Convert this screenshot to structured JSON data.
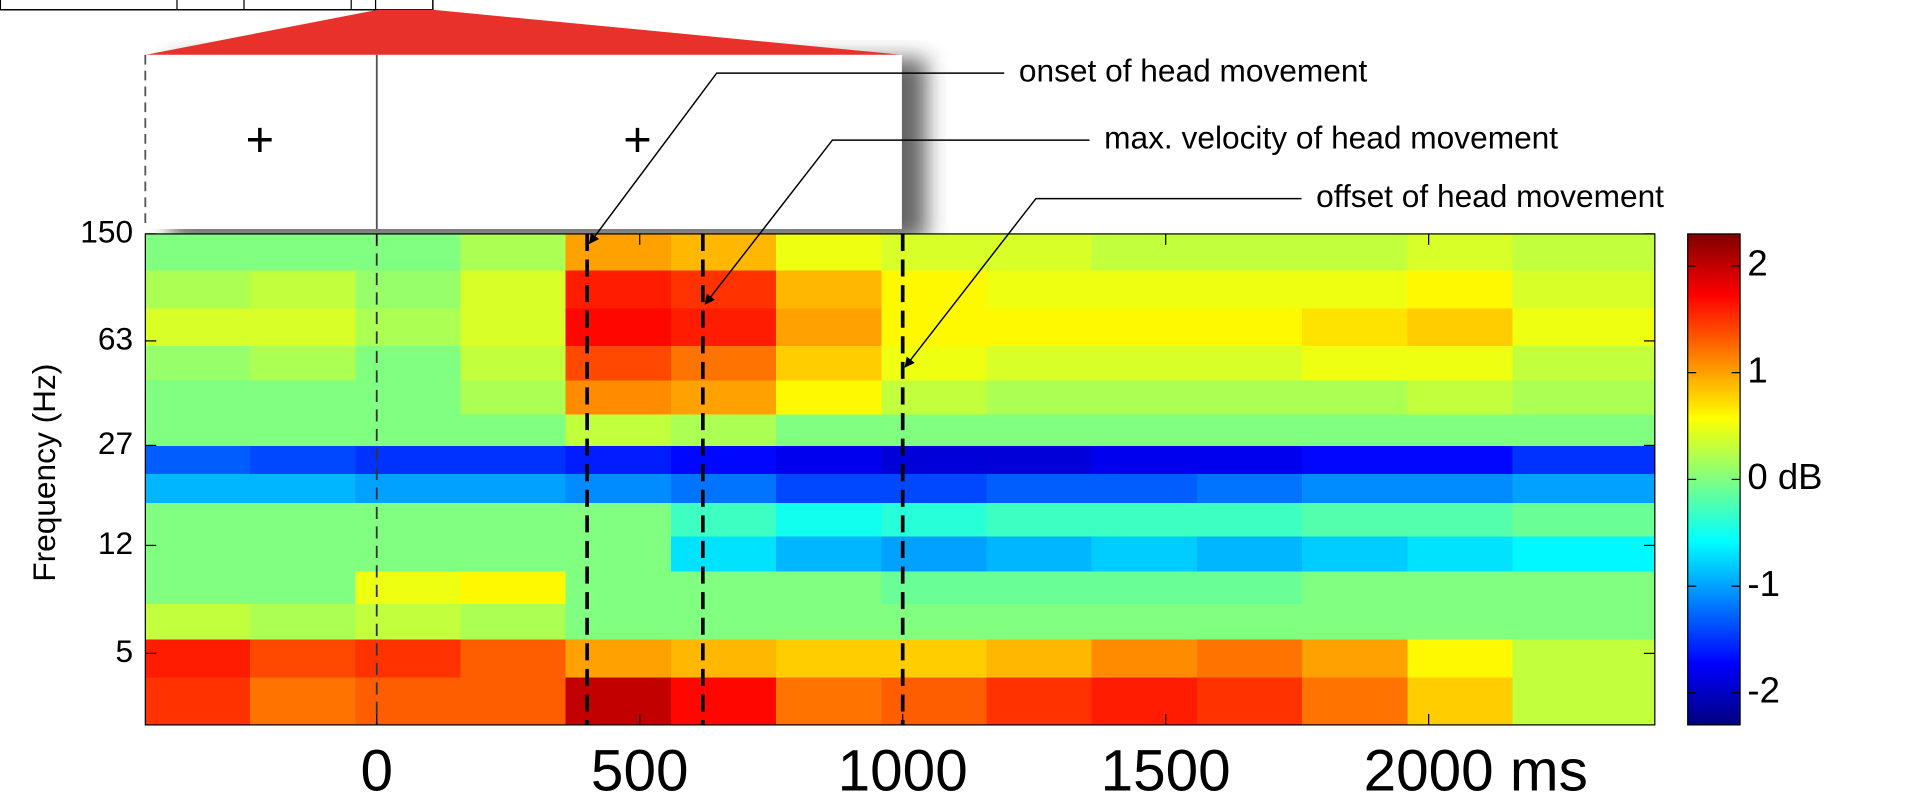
{
  "chart_data": {
    "type": "heatmap",
    "y_label": "Frequency (Hz)",
    "xlim": [
      -440,
      2430
    ],
    "xticks": [
      0,
      500,
      1000,
      1500,
      {
        "value": 2000,
        "label": "2000 ms"
      }
    ],
    "ylim": [
      2.8,
      150
    ],
    "yticks": [
      150,
      63,
      27,
      12,
      5
    ],
    "y_scale": "log",
    "x": [
      -340,
      -140,
      60,
      260,
      460,
      660,
      860,
      1060,
      1260,
      1460,
      1660,
      1860,
      2060,
      2260
    ],
    "y": [
      130,
      95,
      70,
      52,
      40,
      30,
      24,
      19,
      15,
      11,
      8.5,
      6.5,
      4.8,
      3.5
    ],
    "z": [
      [
        0,
        0,
        0,
        0.2,
        1.0,
        0.9,
        0.5,
        0.4,
        0.4,
        0.3,
        0.3,
        0.3,
        0.4,
        0.3
      ],
      [
        0.2,
        0.3,
        0.1,
        0.4,
        1.6,
        1.5,
        0.9,
        0.6,
        0.5,
        0.5,
        0.5,
        0.5,
        0.6,
        0.4
      ],
      [
        0.4,
        0.4,
        0.2,
        0.4,
        1.7,
        1.6,
        1.0,
        0.6,
        0.6,
        0.6,
        0.6,
        0.7,
        0.8,
        0.5
      ],
      [
        0.1,
        0.2,
        0,
        0.3,
        1.4,
        1.2,
        0.8,
        0.5,
        0.4,
        0.4,
        0.4,
        0.5,
        0.5,
        0.3
      ],
      [
        0,
        0,
        0,
        0.2,
        1.1,
        1.0,
        0.6,
        0.3,
        0.2,
        0.2,
        0.2,
        0.2,
        0.3,
        0.2
      ],
      [
        0,
        0,
        0,
        0,
        0.3,
        0.2,
        0,
        0,
        0,
        0,
        0,
        0,
        0,
        0
      ],
      [
        -1.3,
        -1.4,
        -1.5,
        -1.5,
        -1.6,
        -1.7,
        -1.8,
        -1.9,
        -1.9,
        -1.8,
        -1.8,
        -1.7,
        -1.7,
        -1.5
      ],
      [
        -0.9,
        -0.9,
        -1.0,
        -1.0,
        -1.1,
        -1.2,
        -1.4,
        -1.4,
        -1.3,
        -1.3,
        -1.2,
        -1.1,
        -1.1,
        -1.0
      ],
      [
        0,
        0,
        0,
        0,
        0,
        -0.3,
        -0.5,
        -0.4,
        -0.3,
        -0.3,
        -0.3,
        -0.2,
        -0.2,
        -0.1
      ],
      [
        0,
        0,
        0,
        0,
        0,
        -0.7,
        -0.9,
        -1.0,
        -0.9,
        -0.8,
        -0.9,
        -0.8,
        -0.7,
        -0.6
      ],
      [
        0,
        0,
        0.5,
        0.6,
        0,
        0,
        0,
        -0.1,
        -0.1,
        -0.1,
        -0.1,
        0,
        0,
        0
      ],
      [
        0.3,
        0.2,
        0.3,
        0.2,
        0,
        0,
        0,
        0,
        0,
        0,
        0,
        0,
        0,
        0
      ],
      [
        1.6,
        1.4,
        1.5,
        1.3,
        1.0,
        0.9,
        0.8,
        0.8,
        0.9,
        1.1,
        1.2,
        1.0,
        0.6,
        0.3
      ],
      [
        1.5,
        1.2,
        1.3,
        1.3,
        2.0,
        1.7,
        1.2,
        1.3,
        1.5,
        1.6,
        1.5,
        1.2,
        0.8,
        0.3
      ]
    ],
    "colormap": "jet",
    "clim": [
      -2.3,
      2.3
    ],
    "colorbar_ticks": [
      2,
      1,
      {
        "value": 0,
        "label": "0 dB"
      },
      -1,
      -2
    ],
    "event_lines": [
      0,
      400,
      620,
      1000
    ],
    "annotations": [
      {
        "text": "onset of head movement",
        "x": 400,
        "y": 139
      },
      {
        "text": "max. velocity of head movement",
        "x": 620,
        "y": 85
      },
      {
        "text": "offset of head movement",
        "x": 1000,
        "y": 51
      }
    ],
    "fixation_marks": [
      {
        "text": "+",
        "color": "#000000"
      },
      {
        "text": "+",
        "color": "#e8312a"
      }
    ]
  }
}
